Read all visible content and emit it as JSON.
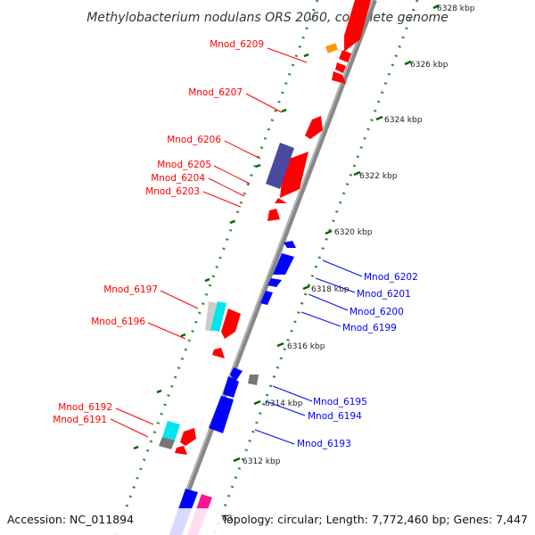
{
  "title": "Methylobacterium nodulans ORS 2060, complete genome",
  "footer": {
    "accession": "Accession: NC_011894",
    "summary": "Topology: circular; Length: 7,772,460 bp; Genes: 7,447",
    "partial_tick": "63"
  },
  "colors": {
    "forward": "#ff0000",
    "reverse": "#0000ff",
    "backbone": "#888888",
    "dots": "#2e8b2e",
    "tick": "#006400",
    "purple": "#4a4aa0",
    "cyan": "#00e5ee",
    "gray": "#777777",
    "lightgray": "#cccccc",
    "orange": "#ff9900",
    "magenta": "#ff1493"
  },
  "ticks": [
    "6328 kbp",
    "6326 kbp",
    "6324 kbp",
    "6322 kbp",
    "6320 kbp",
    "6318 kbp",
    "6316 kbp",
    "6314 kbp",
    "6312 kbp"
  ],
  "labels_left": [
    "Mnod_6209",
    "Mnod_6207",
    "Mnod_6206",
    "Mnod_6205",
    "Mnod_6204",
    "Mnod_6203",
    "Mnod_6197",
    "Mnod_6196",
    "Mnod_6192",
    "Mnod_6191"
  ],
  "labels_right": [
    "Mnod_6202",
    "Mnod_6201",
    "Mnod_6200",
    "Mnod_6199",
    "Mnod_6195",
    "Mnod_6194",
    "Mnod_6193"
  ]
}
